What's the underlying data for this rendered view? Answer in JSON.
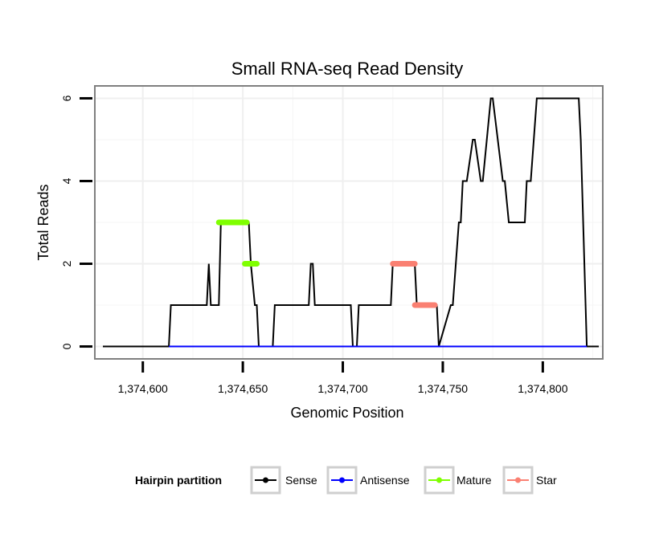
{
  "chart_data": {
    "type": "line",
    "title": "Small RNA-seq Read Density",
    "xlabel": "Genomic Position",
    "ylabel": "Total Reads",
    "xlim": [
      1374576,
      1374830
    ],
    "ylim": [
      -0.3,
      6.3
    ],
    "x_ticks": [
      1374600,
      1374650,
      1374700,
      1374750,
      1374800
    ],
    "x_tick_labels": [
      "1,374,600",
      "1,374,650",
      "1,374,700",
      "1,374,750",
      "1,374,800"
    ],
    "y_ticks": [
      0,
      2,
      4,
      6
    ],
    "y_tick_labels": [
      "0",
      "2",
      "4",
      "6"
    ],
    "grid": true,
    "legend": {
      "title": "Hairpin partition",
      "position": "bottom",
      "entries": [
        {
          "name": "Sense",
          "color": "#000000"
        },
        {
          "name": "Antisense",
          "color": "#0000ff"
        },
        {
          "name": "Mature",
          "color": "#7fff00"
        },
        {
          "name": "Star",
          "color": "#fa8072"
        }
      ]
    },
    "series": [
      {
        "name": "Sense",
        "color": "#000000",
        "style": "line",
        "x": [
          1374580,
          1374613,
          1374614,
          1374632,
          1374633,
          1374634,
          1374638,
          1374639,
          1374653,
          1374654,
          1374656,
          1374657,
          1374658,
          1374665,
          1374666,
          1374683,
          1374684,
          1374685,
          1374686,
          1374704,
          1374705,
          1374707,
          1374708,
          1374724,
          1374725,
          1374736,
          1374737,
          1374747,
          1374748,
          1374754,
          1374755,
          1374758,
          1374759,
          1374760,
          1374762,
          1374765,
          1374766,
          1374769,
          1374770,
          1374774,
          1374775,
          1374780,
          1374781,
          1374783,
          1374784,
          1374791,
          1374792,
          1374794,
          1374797,
          1374818,
          1374819,
          1374822,
          1374828
        ],
        "values": [
          0,
          0,
          1,
          1,
          2,
          1,
          1,
          3,
          3,
          2,
          1,
          1,
          0,
          0,
          1,
          1,
          2,
          2,
          1,
          1,
          0,
          0,
          1,
          1,
          2,
          2,
          1,
          1,
          0,
          1,
          1,
          3,
          3,
          4,
          4,
          5,
          5,
          4,
          4,
          6,
          6,
          4,
          4,
          3,
          3,
          3,
          4,
          4,
          6,
          6,
          5,
          0,
          0
        ]
      },
      {
        "name": "Antisense",
        "color": "#0000ff",
        "style": "line",
        "x": [
          1374613,
          1374822
        ],
        "values": [
          0,
          0
        ]
      },
      {
        "name": "Mature",
        "color": "#7fff00",
        "style": "segment",
        "segments": [
          {
            "x": [
              1374638,
              1374652
            ],
            "value": 3
          },
          {
            "x": [
              1374651,
              1374657
            ],
            "value": 2
          }
        ]
      },
      {
        "name": "Star",
        "color": "#fa8072",
        "style": "segment",
        "segments": [
          {
            "x": [
              1374725,
              1374736
            ],
            "value": 2
          },
          {
            "x": [
              1374736,
              1374746
            ],
            "value": 1
          }
        ]
      }
    ]
  }
}
